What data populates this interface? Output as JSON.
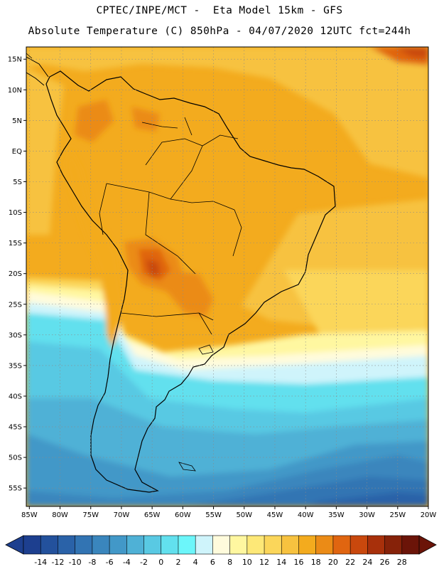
{
  "header": {
    "line1": "CPTEC/INPE/MCT -  Eta Model 15km - GFS",
    "line2": "Absolute Temperature (C) 850hPa - 04/07/2020 12UTC fct=244h"
  },
  "map": {
    "region": "South America",
    "lat_labels": [
      "15N",
      "10N",
      "5N",
      "EQ",
      "5S",
      "10S",
      "15S",
      "20S",
      "25S",
      "30S",
      "35S",
      "40S",
      "45S",
      "50S",
      "55S"
    ],
    "lon_labels": [
      "85W",
      "80W",
      "75W",
      "70W",
      "65W",
      "60W",
      "55W",
      "50W",
      "45W",
      "40W",
      "35W",
      "30W",
      "25W",
      "20W"
    ],
    "lat_range": [
      17,
      -58
    ],
    "lon_range": [
      -85.5,
      -20
    ],
    "grid": "dotted"
  },
  "colorbar": {
    "labels": [
      "-14",
      "-12",
      "-10",
      "-8",
      "-6",
      "-4",
      "-2",
      "0",
      "2",
      "4",
      "6",
      "8",
      "10",
      "12",
      "14",
      "16",
      "18",
      "20",
      "22",
      "24",
      "26",
      "28"
    ],
    "colors": [
      "#1d3f8f",
      "#23519c",
      "#2a62a8",
      "#3274b3",
      "#3a86bd",
      "#4298c8",
      "#4fb1d6",
      "#59c9e3",
      "#62e0ee",
      "#6cf6fa",
      "#cff4fb",
      "#fffbdc",
      "#fff7a0",
      "#fde877",
      "#fbd65a",
      "#f7c23f",
      "#f3ab1e",
      "#eb8b16",
      "#e06510",
      "#c9480d",
      "#a8300b",
      "#862209",
      "#6b1408"
    ]
  }
}
